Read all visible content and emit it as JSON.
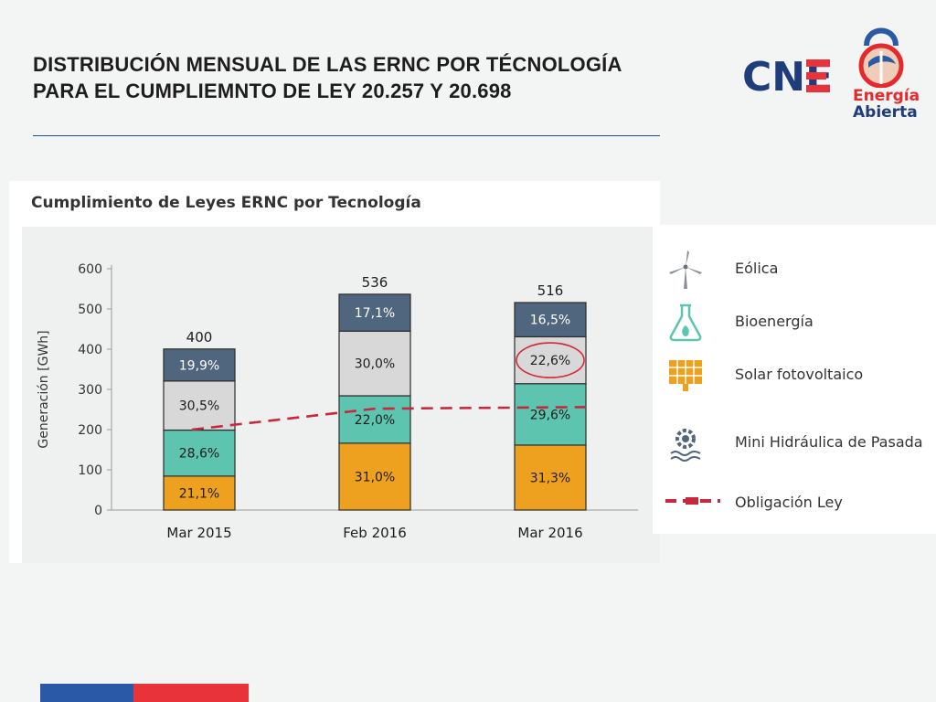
{
  "slide": {
    "title_line1": "DISTRIBUCIÓN MENSUAL DE LAS ERNC POR TÉCNOLOGÍA",
    "title_line2": "PARA EL CUMPLIEMNTO DE LEY 20.257 Y 20.698"
  },
  "logos": {
    "cne": "CNE",
    "energia": "Energía",
    "abierta": "Abierta"
  },
  "colors": {
    "solar": "#eea11f",
    "mini_hidraulica": "#5dc5af",
    "bioenergia": "#d8d8d8",
    "eolica": "#50657e",
    "obligacion": "#c8283e",
    "accent_blue": "#23509a",
    "accent_red": "#e8333a"
  },
  "chart_data": {
    "type": "bar",
    "stacked": true,
    "title": "Cumplimiento de Leyes ERNC por Tecnología",
    "ylabel": "Generación [GWh]",
    "ylim": [
      0,
      600
    ],
    "yticks": [
      "0",
      "100",
      "200",
      "300",
      "400",
      "500",
      "600"
    ],
    "categories": [
      "Mar 2015",
      "Feb 2016",
      "Mar 2016"
    ],
    "totals": [
      "400",
      "536",
      "516"
    ],
    "series": [
      {
        "name": "Solar fotovoltaico",
        "key": "solar",
        "values": [
          84.4,
          166.2,
          161.5
        ],
        "labels": [
          "21,1%",
          "31,0%",
          "31,3%"
        ]
      },
      {
        "name": "Mini Hidráulica de Pasada",
        "key": "mini_hidraulica",
        "values": [
          114.4,
          117.9,
          152.7
        ],
        "labels": [
          "28,6%",
          "22,0%",
          "29,6%"
        ]
      },
      {
        "name": "Bioenergía",
        "key": "bioenergia",
        "values": [
          122.0,
          160.8,
          116.6
        ],
        "labels": [
          "30,5%",
          "30,0%",
          "22,6%"
        ]
      },
      {
        "name": "Eólica",
        "key": "eolica",
        "values": [
          79.6,
          91.7,
          85.1
        ],
        "labels": [
          "19,9%",
          "17,1%",
          "16,5%"
        ]
      }
    ],
    "obligacion": {
      "name": "Obligación Ley",
      "values": [
        200,
        252,
        256
      ]
    },
    "highlight": {
      "category": "Mar 2016",
      "series": "Bioenergía"
    }
  },
  "legend": [
    {
      "label": "Eólica",
      "icon": "wind-turbine-icon"
    },
    {
      "label": "Bioenergía",
      "icon": "flask-leaf-icon"
    },
    {
      "label": "Solar fotovoltaico",
      "icon": "solar-panel-icon"
    },
    {
      "label": "Mini Hidráulica de Pasada",
      "icon": "water-gear-icon"
    },
    {
      "label": "Obligación Ley",
      "icon": "dashed-line-icon"
    }
  ]
}
